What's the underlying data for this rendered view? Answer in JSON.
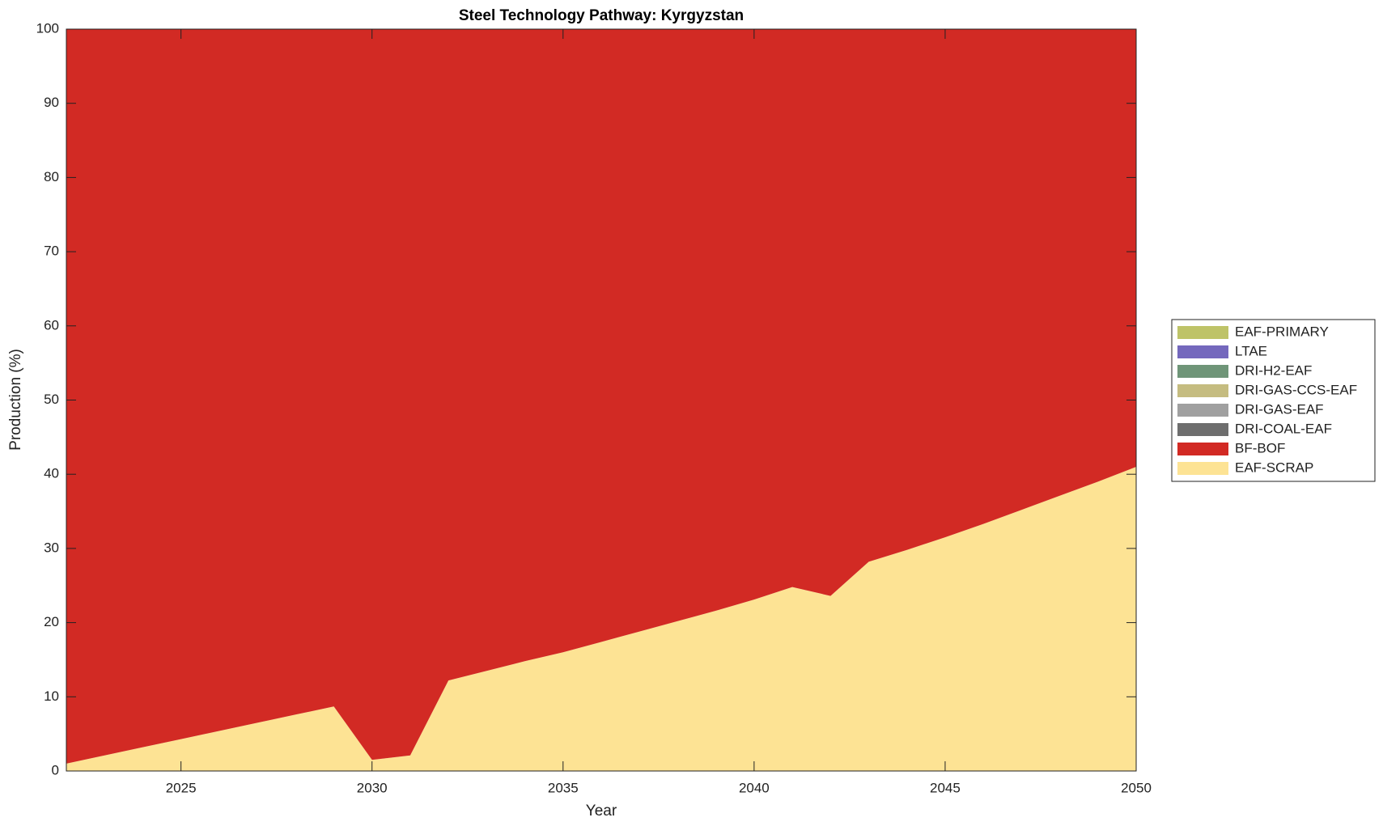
{
  "chart_data": {
    "type": "stacked_area",
    "title": "Steel Technology Pathway: Kyrgyzstan",
    "x_label": "Year",
    "y_label": "Production (%)",
    "x": [
      2022,
      2023,
      2024,
      2025,
      2026,
      2027,
      2028,
      2029,
      2030,
      2031,
      2032,
      2033,
      2034,
      2035,
      2036,
      2037,
      2038,
      2039,
      2040,
      2041,
      2042,
      2043,
      2044,
      2045,
      2046,
      2047,
      2048,
      2049,
      2050
    ],
    "series": [
      {
        "name": "EAF-SCRAP",
        "color": "#fde394",
        "values": [
          1.0,
          2.1,
          3.2,
          4.3,
          5.4,
          6.5,
          7.6,
          8.7,
          1.5,
          2.1,
          12.2,
          13.5,
          14.8,
          16.0,
          17.4,
          18.8,
          20.2,
          21.6,
          23.1,
          24.8,
          23.6,
          28.2,
          29.8,
          31.5,
          33.3,
          35.2,
          37.1,
          39.0,
          41.0
        ]
      },
      {
        "name": "BF-BOF",
        "color": "#d22a24",
        "values": [
          99.0,
          97.9,
          96.8,
          95.7,
          94.6,
          93.5,
          92.4,
          91.3,
          98.5,
          97.9,
          87.8,
          86.5,
          85.2,
          84.0,
          82.6,
          81.2,
          79.8,
          78.4,
          76.9,
          75.2,
          76.4,
          71.8,
          70.2,
          68.5,
          66.7,
          64.8,
          62.9,
          61.0,
          59.0
        ]
      },
      {
        "name": "DRI-COAL-EAF",
        "color": "#6e6e6e",
        "values": [
          0,
          0,
          0,
          0,
          0,
          0,
          0,
          0,
          0,
          0,
          0,
          0,
          0,
          0,
          0,
          0,
          0,
          0,
          0,
          0,
          0,
          0,
          0,
          0,
          0,
          0,
          0,
          0,
          0
        ]
      },
      {
        "name": "DRI-GAS-EAF",
        "color": "#a0a0a0",
        "values": [
          0,
          0,
          0,
          0,
          0,
          0,
          0,
          0,
          0,
          0,
          0,
          0,
          0,
          0,
          0,
          0,
          0,
          0,
          0,
          0,
          0,
          0,
          0,
          0,
          0,
          0,
          0,
          0,
          0
        ]
      },
      {
        "name": "DRI-GAS-CCS-EAF",
        "color": "#c5bc80",
        "values": [
          0,
          0,
          0,
          0,
          0,
          0,
          0,
          0,
          0,
          0,
          0,
          0,
          0,
          0,
          0,
          0,
          0,
          0,
          0,
          0,
          0,
          0,
          0,
          0,
          0,
          0,
          0,
          0,
          0
        ]
      },
      {
        "name": "DRI-H2-EAF",
        "color": "#6f9578",
        "values": [
          0,
          0,
          0,
          0,
          0,
          0,
          0,
          0,
          0,
          0,
          0,
          0,
          0,
          0,
          0,
          0,
          0,
          0,
          0,
          0,
          0,
          0,
          0,
          0,
          0,
          0,
          0,
          0,
          0
        ]
      },
      {
        "name": "LTAE",
        "color": "#7468bd",
        "values": [
          0,
          0,
          0,
          0,
          0,
          0,
          0,
          0,
          0,
          0,
          0,
          0,
          0,
          0,
          0,
          0,
          0,
          0,
          0,
          0,
          0,
          0,
          0,
          0,
          0,
          0,
          0,
          0,
          0
        ]
      },
      {
        "name": "EAF-PRIMARY",
        "color": "#bec368",
        "values": [
          0,
          0,
          0,
          0,
          0,
          0,
          0,
          0,
          0,
          0,
          0,
          0,
          0,
          0,
          0,
          0,
          0,
          0,
          0,
          0,
          0,
          0,
          0,
          0,
          0,
          0,
          0,
          0,
          0
        ]
      }
    ],
    "xlim": [
      2022,
      2050
    ],
    "xticks": [
      2025,
      2030,
      2035,
      2040,
      2045,
      2050
    ],
    "ylim": [
      0,
      100
    ],
    "yticks": [
      0,
      10,
      20,
      30,
      40,
      50,
      60,
      70,
      80,
      90,
      100
    ],
    "legend": "outside-right"
  }
}
